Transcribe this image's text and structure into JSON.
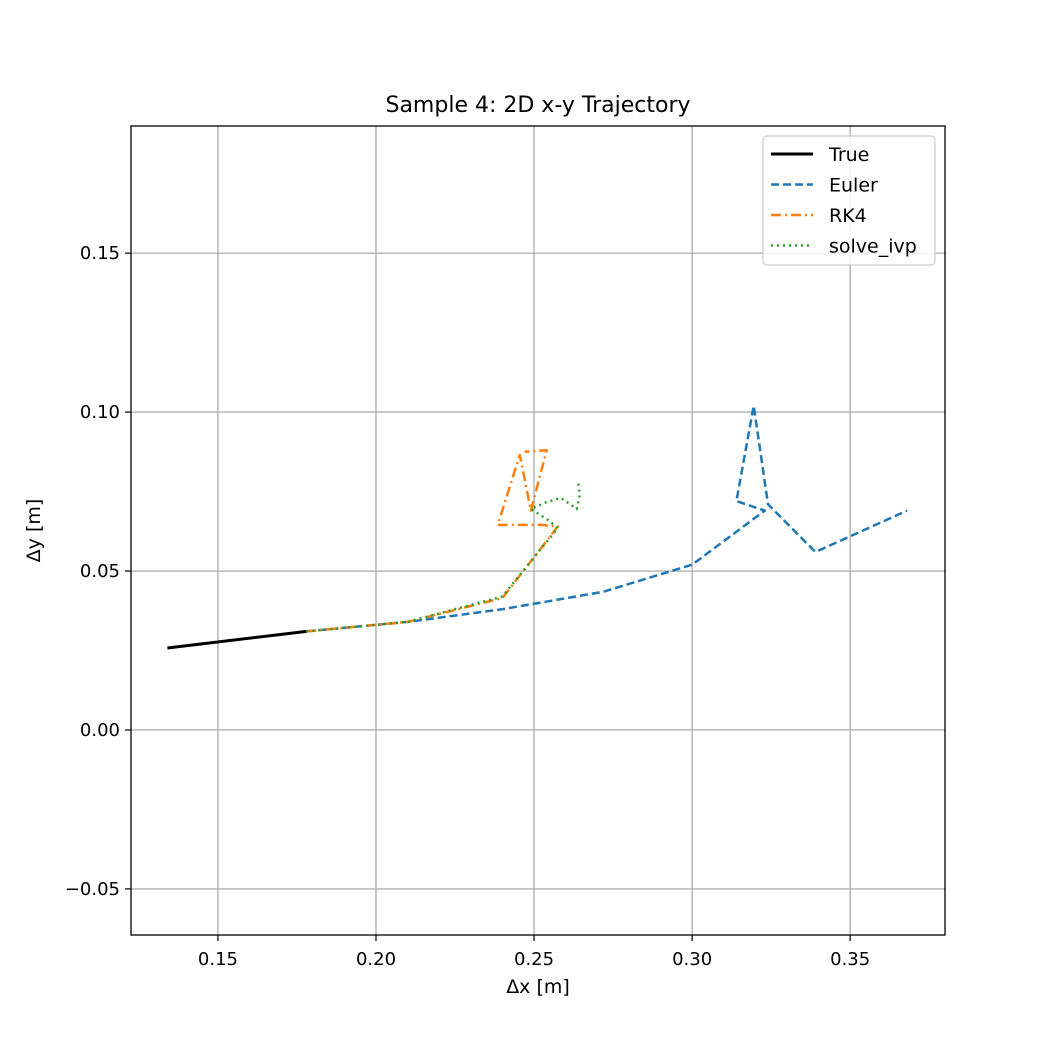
{
  "chart_data": {
    "type": "line",
    "title": "Sample 4: 2D x-y Trajectory",
    "xlabel": "Δx [m]",
    "ylabel": "Δy [m]",
    "xlim": [
      0.1225,
      0.38
    ],
    "ylim": [
      -0.0645,
      0.19
    ],
    "xticks": [
      0.15,
      0.2,
      0.25,
      0.3,
      0.35
    ],
    "xtick_labels": [
      "0.15",
      "0.20",
      "0.25",
      "0.30",
      "0.35"
    ],
    "yticks": [
      -0.05,
      0.0,
      0.05,
      0.1,
      0.15
    ],
    "ytick_labels": [
      "−0.05",
      "0.00",
      "0.05",
      "0.10",
      "0.15"
    ],
    "grid": true,
    "legend_position": "top-right",
    "series": [
      {
        "name": "True",
        "color": "#000000",
        "style": "solid",
        "points": [
          [
            0.134,
            0.0258
          ],
          [
            0.178,
            0.031
          ]
        ]
      },
      {
        "name": "Euler",
        "color": "#1f77b4",
        "style": "dashed",
        "points": [
          [
            0.178,
            0.031
          ],
          [
            0.21,
            0.034
          ],
          [
            0.24,
            0.038
          ],
          [
            0.272,
            0.0435
          ],
          [
            0.3,
            0.052
          ],
          [
            0.323,
            0.069
          ],
          [
            0.314,
            0.072
          ],
          [
            0.3195,
            0.102
          ],
          [
            0.324,
            0.071
          ],
          [
            0.339,
            0.056
          ],
          [
            0.368,
            0.069
          ]
        ]
      },
      {
        "name": "RK4",
        "color": "#ff7f0e",
        "style": "dashdot",
        "points": [
          [
            0.178,
            0.031
          ],
          [
            0.21,
            0.034
          ],
          [
            0.24,
            0.0415
          ],
          [
            0.2575,
            0.064
          ],
          [
            0.2525,
            0.0645
          ],
          [
            0.2385,
            0.0645
          ],
          [
            0.2455,
            0.0865
          ],
          [
            0.249,
            0.069
          ],
          [
            0.254,
            0.088
          ],
          [
            0.247,
            0.0875
          ]
        ]
      },
      {
        "name": "solve_ivp",
        "color": "#2ca02c",
        "style": "dotted",
        "points": [
          [
            0.178,
            0.031
          ],
          [
            0.21,
            0.034
          ],
          [
            0.24,
            0.042
          ],
          [
            0.2575,
            0.0635
          ],
          [
            0.2545,
            0.066
          ],
          [
            0.249,
            0.0695
          ],
          [
            0.2535,
            0.0715
          ],
          [
            0.2585,
            0.073
          ],
          [
            0.2635,
            0.0695
          ],
          [
            0.2645,
            0.074
          ],
          [
            0.264,
            0.0775
          ]
        ]
      }
    ]
  }
}
